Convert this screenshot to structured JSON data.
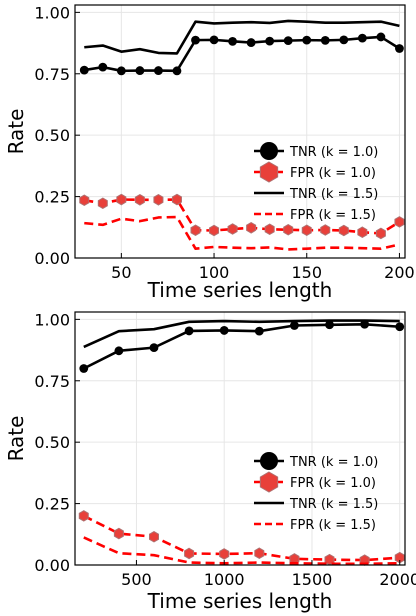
{
  "chart_data": [
    {
      "type": "line",
      "xlabel": "Time series length",
      "ylabel": "Rate",
      "xlim": [
        25,
        203
      ],
      "ylim": [
        0,
        1.03
      ],
      "xticks": [
        50,
        100,
        150,
        200
      ],
      "xtick_labels": [
        "50",
        "100",
        "150",
        "200"
      ],
      "yticks": [
        0,
        0.25,
        0.5,
        0.75,
        1.0
      ],
      "ytick_labels": [
        "0.00",
        "0.25",
        "0.50",
        "0.75",
        "1.00"
      ],
      "grid": true,
      "legend_position": "center-right",
      "x": [
        30,
        40,
        50,
        60,
        70,
        80,
        90,
        100,
        110,
        120,
        130,
        140,
        150,
        160,
        170,
        180,
        190,
        200
      ],
      "series": [
        {
          "name": "TNR (k = 1.0)",
          "color": "#000000",
          "style": "solid-marker-circle",
          "values": [
            0.765,
            0.777,
            0.762,
            0.763,
            0.763,
            0.762,
            0.887,
            0.888,
            0.882,
            0.877,
            0.883,
            0.885,
            0.887,
            0.886,
            0.888,
            0.895,
            0.9,
            0.853
          ]
        },
        {
          "name": "FPR (k = 1.0)",
          "color": "#ff0000",
          "style": "dashed-marker-hexagon",
          "values": [
            0.235,
            0.223,
            0.238,
            0.237,
            0.237,
            0.238,
            0.113,
            0.112,
            0.118,
            0.123,
            0.117,
            0.115,
            0.113,
            0.114,
            0.112,
            0.105,
            0.1,
            0.147
          ]
        },
        {
          "name": "TNR (k = 1.5)",
          "color": "#000000",
          "style": "solid",
          "values": [
            0.858,
            0.865,
            0.84,
            0.85,
            0.835,
            0.833,
            0.962,
            0.955,
            0.958,
            0.96,
            0.957,
            0.965,
            0.962,
            0.958,
            0.958,
            0.96,
            0.962,
            0.945
          ]
        },
        {
          "name": "FPR (k = 1.5)",
          "color": "#ff0000",
          "style": "dashed",
          "values": [
            0.142,
            0.135,
            0.16,
            0.15,
            0.165,
            0.167,
            0.038,
            0.045,
            0.042,
            0.04,
            0.043,
            0.035,
            0.038,
            0.042,
            0.042,
            0.04,
            0.038,
            0.055
          ]
        }
      ]
    },
    {
      "type": "line",
      "xlabel": "Time series length",
      "ylabel": "Rate",
      "xlim": [
        150,
        2030
      ],
      "ylim": [
        0,
        1.03
      ],
      "xticks": [
        500,
        1000,
        1500,
        2000
      ],
      "xtick_labels": [
        "500",
        "1000",
        "1500",
        "2000"
      ],
      "yticks": [
        0,
        0.25,
        0.5,
        0.75,
        1.0
      ],
      "ytick_labels": [
        "0.00",
        "0.25",
        "0.50",
        "0.75",
        "1.00"
      ],
      "grid": true,
      "legend_position": "bottom-right",
      "x": [
        200,
        400,
        600,
        800,
        1000,
        1200,
        1400,
        1600,
        1800,
        2000
      ],
      "series": [
        {
          "name": "TNR (k = 1.0)",
          "color": "#000000",
          "style": "solid-marker-circle",
          "values": [
            0.8,
            0.872,
            0.885,
            0.953,
            0.955,
            0.952,
            0.975,
            0.978,
            0.98,
            0.97
          ]
        },
        {
          "name": "FPR (k = 1.0)",
          "color": "#ff0000",
          "style": "dashed-marker-hexagon",
          "values": [
            0.2,
            0.128,
            0.115,
            0.047,
            0.045,
            0.048,
            0.025,
            0.022,
            0.02,
            0.03
          ]
        },
        {
          "name": "TNR (k = 1.5)",
          "color": "#000000",
          "style": "solid",
          "values": [
            0.888,
            0.952,
            0.96,
            0.99,
            0.993,
            0.99,
            0.993,
            0.995,
            0.995,
            0.993
          ]
        },
        {
          "name": "FPR (k = 1.5)",
          "color": "#ff0000",
          "style": "dashed",
          "values": [
            0.112,
            0.048,
            0.04,
            0.01,
            0.007,
            0.01,
            0.007,
            0.005,
            0.005,
            0.007
          ]
        }
      ]
    }
  ]
}
